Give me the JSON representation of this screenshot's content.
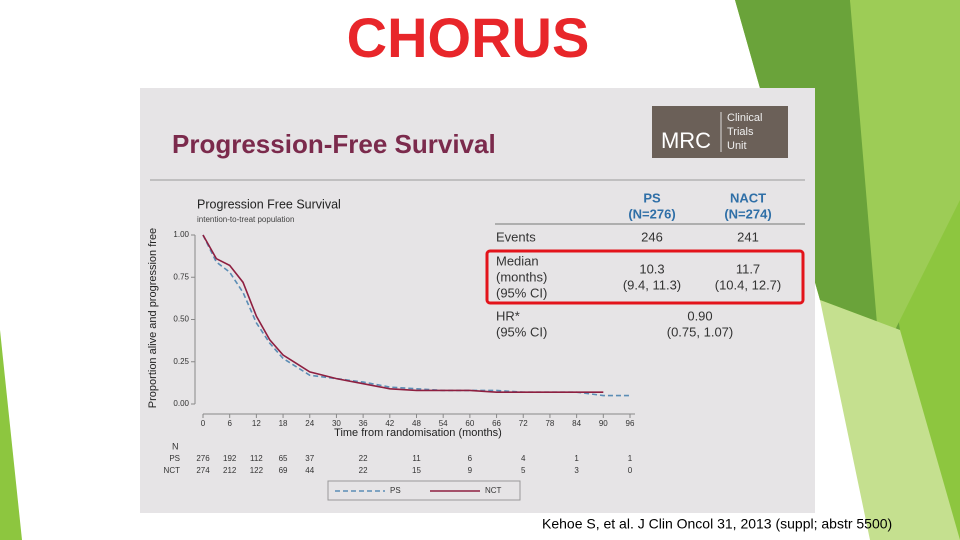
{
  "title": "CHORUS",
  "citation": "Kehoe S, et al. J Clin Oncol 31, 2013 (suppl; abstr 5500)",
  "panel": {
    "title": "Progression-Free Survival",
    "logo": {
      "abbr": "MRC",
      "lines": [
        "Clinical",
        "Trials",
        "Unit"
      ]
    }
  },
  "chart_data": {
    "type": "line",
    "title": "Progression Free Survival",
    "subtitle": "intention-to-treat population",
    "x_label": "Time from randomisation (months)",
    "y_label": "Proportion alive and progression free",
    "x": [
      0,
      3,
      6,
      9,
      12,
      15,
      18,
      21,
      24,
      30,
      36,
      42,
      48,
      54,
      60,
      66,
      72,
      78,
      84,
      90,
      96
    ],
    "series": [
      {
        "name": "PS",
        "color": "#5b8db5",
        "dashed": true,
        "values": [
          1.0,
          0.84,
          0.78,
          0.66,
          0.48,
          0.36,
          0.27,
          0.22,
          0.17,
          0.15,
          0.13,
          0.1,
          0.09,
          0.08,
          0.08,
          0.08,
          0.07,
          0.07,
          0.07,
          0.05,
          0.05
        ]
      },
      {
        "name": "NCT",
        "color": "#8e1f40",
        "dashed": false,
        "values": [
          1.0,
          0.86,
          0.82,
          0.72,
          0.52,
          0.38,
          0.29,
          0.24,
          0.19,
          0.15,
          0.12,
          0.09,
          0.08,
          0.08,
          0.08,
          0.07,
          0.07,
          0.07,
          0.07,
          0.07,
          null
        ]
      }
    ],
    "xlim": [
      0,
      96
    ],
    "xticks": [
      0,
      6,
      12,
      18,
      24,
      30,
      36,
      42,
      48,
      54,
      60,
      66,
      72,
      78,
      84,
      90,
      96
    ],
    "ylim": [
      0,
      1
    ],
    "yticks": [
      {
        "value": 0,
        "label": "0.00"
      },
      {
        "value": 0.25,
        "label": "0.25"
      },
      {
        "value": 0.5,
        "label": "0.50"
      },
      {
        "value": 0.75,
        "label": "0.75"
      },
      {
        "value": 1,
        "label": "1.00"
      }
    ]
  },
  "risk_table": {
    "header": "N",
    "times": [
      0,
      6,
      12,
      18,
      24,
      36,
      48,
      60,
      72,
      84,
      96
    ],
    "rows": [
      {
        "label": "PS",
        "values": [
          276,
          192,
          112,
          65,
          37,
          22,
          11,
          6,
          4,
          1,
          1
        ]
      },
      {
        "label": "NCT",
        "values": [
          274,
          212,
          122,
          69,
          44,
          22,
          15,
          9,
          5,
          3,
          0
        ]
      }
    ]
  },
  "summary": {
    "columns": [
      [
        "PS",
        "(N=276)"
      ],
      [
        "NACT",
        "(N=274)"
      ]
    ],
    "rows": [
      {
        "label": [
          "Events"
        ],
        "cells": [
          [
            "246"
          ],
          [
            "241"
          ]
        ]
      },
      {
        "label": [
          "Median",
          "(months)",
          "(95% CI)"
        ],
        "cells": [
          [
            "10.3",
            "(9.4, 11.3)"
          ],
          [
            "11.7",
            "(10.4, 12.7)"
          ]
        ]
      },
      {
        "label": [
          "HR*",
          "(95% CI)"
        ],
        "cells": [
          [
            "0.90",
            "(0.75, 1.07)"
          ]
        ]
      }
    ]
  }
}
